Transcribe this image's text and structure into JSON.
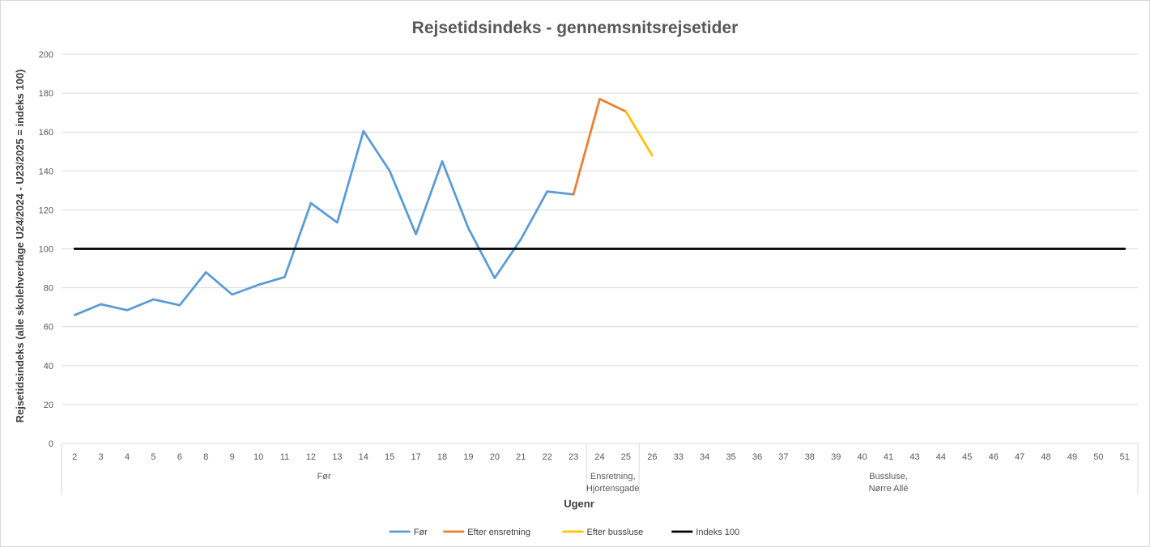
{
  "chart_data": {
    "type": "line",
    "title": "Rejsetidsindeks - gennemsnitsrejsetider",
    "xlabel": "Ugenr",
    "ylabel": "Rejsetidsindeks (alle skolehverdage U24/2024 - U23/2025 = indeks 100)",
    "ylim": [
      0,
      200
    ],
    "yticks": [
      0,
      20,
      40,
      60,
      80,
      100,
      120,
      140,
      160,
      180,
      200
    ],
    "grid": true,
    "legend_position": "bottom",
    "categories": [
      "2",
      "3",
      "4",
      "5",
      "6",
      "8",
      "9",
      "10",
      "11",
      "12",
      "13",
      "14",
      "15",
      "17",
      "18",
      "19",
      "20",
      "21",
      "22",
      "23",
      "24",
      "25",
      "26",
      "33",
      "34",
      "35",
      "36",
      "37",
      "38",
      "39",
      "40",
      "41",
      "43",
      "44",
      "45",
      "46",
      "47",
      "48",
      "49",
      "50",
      "51"
    ],
    "category_groups": [
      {
        "label": [
          "Før"
        ],
        "start": 0,
        "end": 19
      },
      {
        "label": [
          "Ensretning,",
          "Hjortensgade"
        ],
        "start": 20,
        "end": 21
      },
      {
        "label": [
          "Bussluse,",
          "Nørre Allé"
        ],
        "start": 22,
        "end": 40
      }
    ],
    "series": [
      {
        "name": "Før",
        "color": "#5b9bd5",
        "points": [
          [
            0,
            66
          ],
          [
            1,
            71.5
          ],
          [
            2,
            68.5
          ],
          [
            3,
            74
          ],
          [
            4,
            71
          ],
          [
            5,
            88
          ],
          [
            6,
            76.5
          ],
          [
            7,
            81.5
          ],
          [
            8,
            85.5
          ],
          [
            9,
            123.5
          ],
          [
            10,
            113.5
          ],
          [
            11,
            160.5
          ],
          [
            12,
            140
          ],
          [
            13,
            107.5
          ],
          [
            14,
            145
          ],
          [
            15,
            110.5
          ],
          [
            16,
            85
          ],
          [
            17,
            105
          ],
          [
            18,
            129.5
          ],
          [
            19,
            128
          ]
        ]
      },
      {
        "name": "Efter ensretning",
        "color": "#ed7d31",
        "points": [
          [
            19,
            128
          ],
          [
            20,
            177
          ],
          [
            21,
            170.5
          ]
        ]
      },
      {
        "name": "Efter bussluse",
        "color": "#ffc000",
        "points": [
          [
            21,
            170.5
          ],
          [
            22,
            148
          ]
        ]
      },
      {
        "name": "Indeks 100",
        "color": "#000000",
        "points": [
          [
            0,
            100
          ],
          [
            40,
            100
          ]
        ]
      }
    ]
  }
}
